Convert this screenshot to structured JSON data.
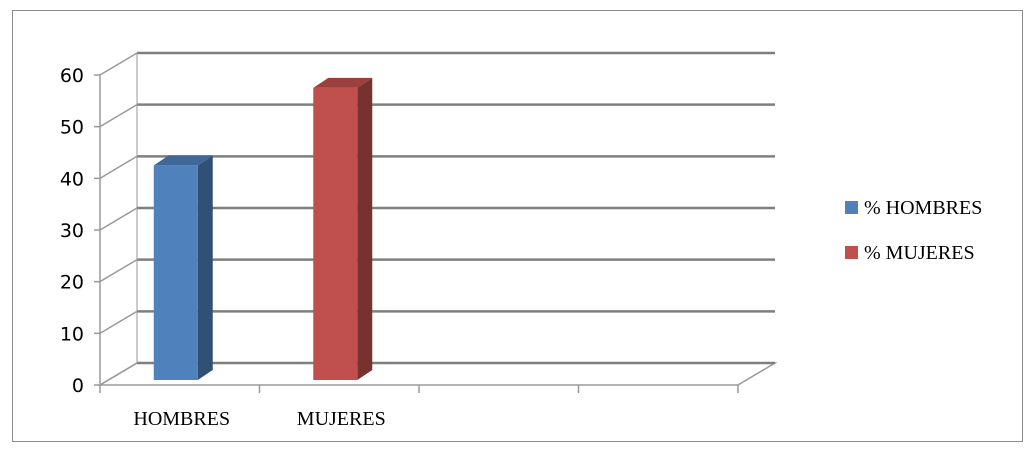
{
  "chart_data": {
    "type": "bar",
    "categories": [
      "HOMBRES",
      "MUJERES",
      "",
      ""
    ],
    "series": [
      {
        "name": "% HOMBRES",
        "values": [
          42.5,
          null,
          null,
          null
        ],
        "color": "#4F81BD"
      },
      {
        "name": "% MUJERES",
        "values": [
          null,
          57.5,
          null,
          null
        ],
        "color": "#C0504D"
      }
    ],
    "title": "",
    "xlabel": "",
    "ylabel": "",
    "ylim": [
      0,
      60
    ],
    "yticks": [
      0,
      10,
      20,
      30,
      40,
      50,
      60
    ],
    "grid": true,
    "legend": "right",
    "style": "3d-column"
  }
}
